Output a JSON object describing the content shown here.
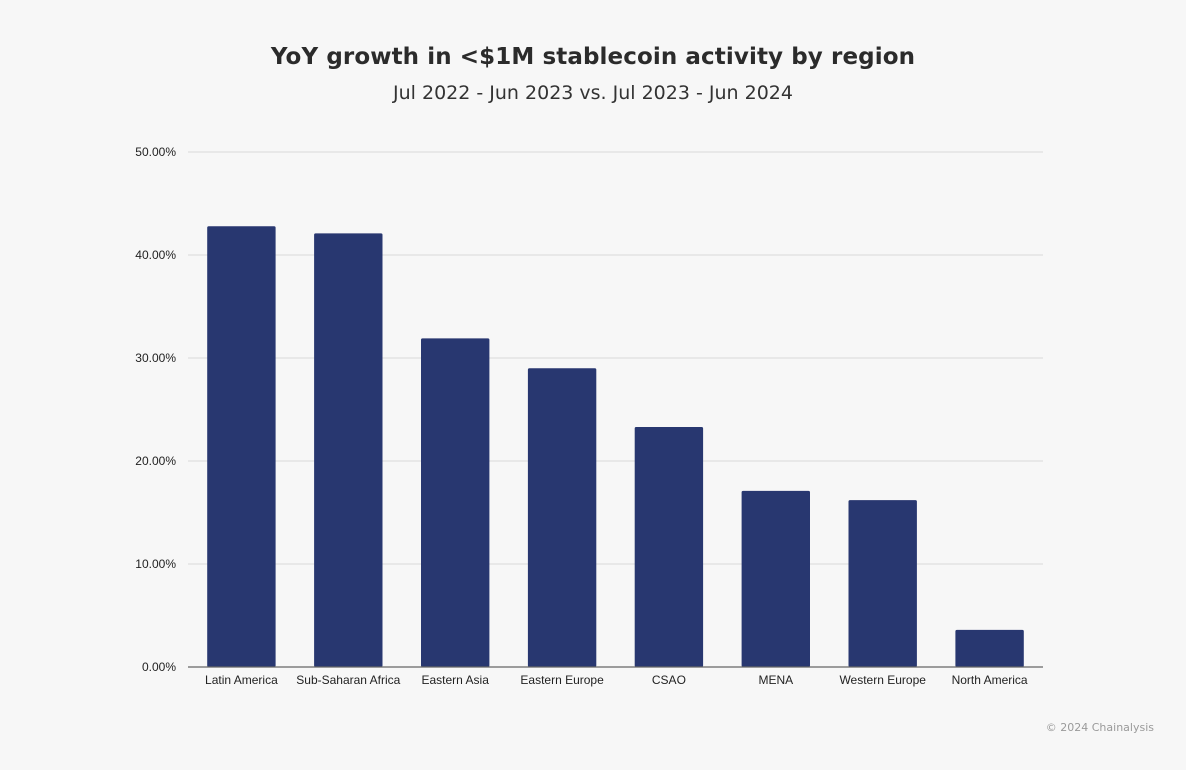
{
  "chart_data": {
    "type": "bar",
    "title": "YoY growth in <$1M stablecoin activity by region",
    "subtitle": "Jul 2022 - Jun 2023 vs. Jul 2023 - Jun 2024",
    "xlabel": "",
    "ylabel": "",
    "categories": [
      "Latin America",
      "Sub-Saharan Africa",
      "Eastern Asia",
      "Eastern Europe",
      "CSAO",
      "MENA",
      "Western Europe",
      "North America"
    ],
    "values": [
      42.8,
      42.1,
      31.9,
      29.0,
      23.3,
      17.1,
      16.2,
      3.6
    ],
    "ylim": [
      0,
      50
    ],
    "yticks": [
      0,
      10,
      20,
      30,
      40,
      50
    ],
    "ytick_labels": [
      "0.00%",
      "10.00%",
      "20.00%",
      "30.00%",
      "40.00%",
      "50.00%"
    ],
    "grid": true,
    "bar_color": "#283770",
    "gridline_color": "#d9d9d9",
    "axis_color": "#666666"
  },
  "footer": {
    "copyright": "© 2024 Chainalysis"
  }
}
